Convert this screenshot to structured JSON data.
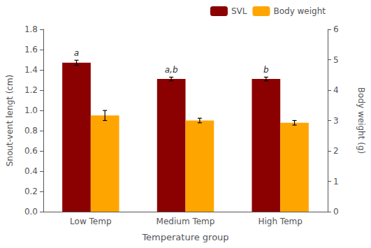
{
  "chart_data": {
    "type": "bar",
    "categories": [
      "Low Temp",
      "Medium Temp",
      "High Temp"
    ],
    "xlabel": "Temperature group",
    "ylabel": "Snout-vent lengt (cm)",
    "y2label": "Body weight (g)",
    "ylim": [
      0,
      1.8
    ],
    "yticks": [
      {
        "value": 0,
        "label": "0.0"
      },
      0.2,
      0.4,
      0.6,
      0.8,
      {
        "value": 1,
        "label": "1.0"
      },
      1.2,
      1.4,
      1.6,
      1.8
    ],
    "y2lim": [
      0,
      6
    ],
    "y2ticks": [
      0,
      1,
      2,
      3,
      4,
      5,
      6
    ],
    "series": [
      {
        "name": "SVL",
        "color": "#8B0000",
        "values": [
          1.47,
          1.31,
          1.31
        ],
        "errors": [
          0.025,
          0.018,
          0.018
        ],
        "annotations": [
          "a",
          "a,b",
          "b"
        ]
      },
      {
        "name": "Body weight",
        "color": "#FFA500",
        "values": [
          3.165,
          3.0,
          2.925
        ],
        "errors": [
          0.165,
          0.075,
          0.075
        ],
        "axis": "y2"
      }
    ],
    "legend": "upper right",
    "grid": false
  }
}
